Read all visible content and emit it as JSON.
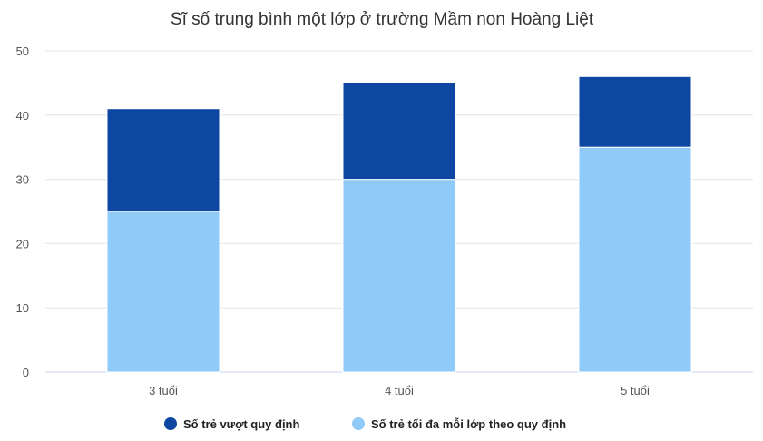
{
  "chart_data": {
    "type": "bar",
    "stacked": true,
    "title": "Sĩ số trung bình một lớp ở trường Mầm non Hoàng Liệt",
    "categories": [
      "3 tuổi",
      "4 tuổi",
      "5 tuổi"
    ],
    "series": [
      {
        "name": "Số trẻ tối đa mỗi lớp theo quy định",
        "values": [
          25,
          30,
          35
        ],
        "color": "#90caf9"
      },
      {
        "name": "Số trẻ vượt quy định",
        "values": [
          16,
          15,
          11
        ],
        "color": "#0d47a1"
      }
    ],
    "ylim": [
      0,
      50
    ],
    "yticks": [
      0,
      10,
      20,
      30,
      40,
      50
    ],
    "grid": true,
    "legend": "bottom",
    "legend_order": [
      1,
      0
    ]
  }
}
